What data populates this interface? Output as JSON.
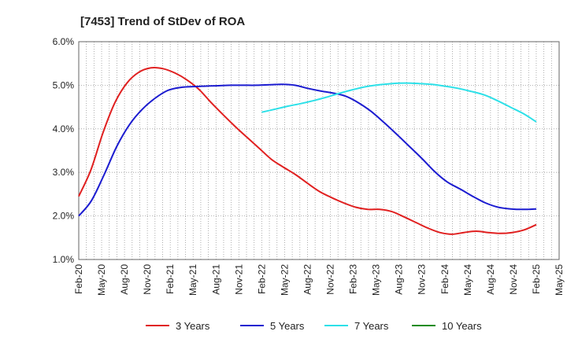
{
  "chart_data": {
    "type": "line",
    "title": "[7453]  Trend of StDev of ROA",
    "xlabel": "",
    "ylabel": "",
    "y_tick_labels": [
      "1.0%",
      "2.0%",
      "3.0%",
      "4.0%",
      "5.0%",
      "6.0%"
    ],
    "ylim": [
      1.0,
      6.0
    ],
    "x_tick_labels": [
      "Feb-20",
      "May-20",
      "Aug-20",
      "Nov-20",
      "Feb-21",
      "May-21",
      "Aug-21",
      "Nov-21",
      "Feb-22",
      "May-22",
      "Aug-22",
      "Nov-22",
      "Feb-23",
      "May-23",
      "Aug-23",
      "Nov-23",
      "Feb-24",
      "May-24",
      "Aug-24",
      "Nov-24",
      "Feb-25",
      "May-25"
    ],
    "grid": true,
    "legend_position": "bottom",
    "series": [
      {
        "name": "3 Years",
        "color": "#e02020",
        "values": [
          2.45,
          3.05,
          3.9,
          4.6,
          5.05,
          5.3,
          5.4,
          5.38,
          5.28,
          5.12,
          4.9,
          4.6,
          4.32,
          4.05,
          3.8,
          3.55,
          3.3,
          3.12,
          2.95,
          2.75,
          2.56,
          2.42,
          2.3,
          2.2,
          2.15,
          2.15,
          2.1,
          1.98,
          1.85,
          1.72,
          1.62,
          1.58,
          1.62,
          1.65,
          1.62,
          1.6,
          1.62,
          1.68,
          1.8
        ]
      },
      {
        "name": "5 Years",
        "color": "#1c1cd0",
        "values": [
          2.0,
          2.35,
          2.95,
          3.6,
          4.1,
          4.45,
          4.7,
          4.88,
          4.95,
          4.97,
          4.98,
          4.99,
          5.0,
          5.0,
          5.0,
          5.01,
          5.02,
          5.0,
          4.93,
          4.87,
          4.82,
          4.75,
          4.6,
          4.4,
          4.15,
          3.88,
          3.6,
          3.32,
          3.02,
          2.78,
          2.62,
          2.45,
          2.3,
          2.2,
          2.16,
          2.15,
          2.16
        ]
      },
      {
        "name": "7 Years",
        "color": "#2de0e8",
        "values": [
          4.38,
          4.45,
          4.52,
          4.58,
          4.65,
          4.73,
          4.82,
          4.9,
          4.97,
          5.01,
          5.04,
          5.05,
          5.04,
          5.02,
          4.98,
          4.93,
          4.86,
          4.78,
          4.65,
          4.5,
          4.35,
          4.16
        ]
      },
      {
        "name": "10 Years",
        "color": "#1a8c1a",
        "values": []
      }
    ]
  }
}
